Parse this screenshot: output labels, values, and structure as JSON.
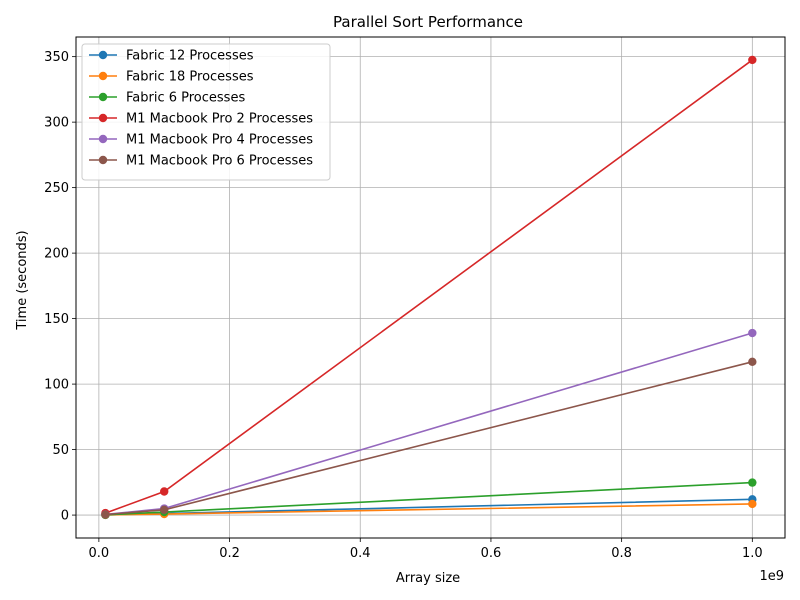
{
  "chart_data": {
    "type": "line",
    "title": "Parallel Sort Performance",
    "xlabel": "Array size",
    "ylabel": "Time (seconds)",
    "x_offset_label": "1e9",
    "x_scale": 1000000000,
    "xlim": [
      -0.035,
      1.05
    ],
    "ylim": [
      -17.5,
      365
    ],
    "xticks": [
      0.0,
      0.2,
      0.4,
      0.6,
      0.8,
      1.0
    ],
    "xtick_labels": [
      "0.0",
      "0.2",
      "0.4",
      "0.6",
      "0.8",
      "1.0"
    ],
    "yticks": [
      0,
      50,
      100,
      150,
      200,
      250,
      300,
      350
    ],
    "ytick_labels": [
      "0",
      "50",
      "100",
      "150",
      "200",
      "250",
      "300",
      "350"
    ],
    "grid": true,
    "legend_position": "top-left",
    "x": [
      0.01,
      0.1,
      1.0
    ],
    "series": [
      {
        "name": "Fabric 12 Processes",
        "color": "#1f77b4",
        "values": [
          0.1,
          1.2,
          12.0
        ]
      },
      {
        "name": "Fabric 18 Processes",
        "color": "#ff7f0e",
        "values": [
          0.1,
          0.8,
          8.5
        ]
      },
      {
        "name": "Fabric 6 Processes",
        "color": "#2ca02c",
        "values": [
          0.2,
          2.3,
          24.8
        ]
      },
      {
        "name": "M1 Macbook Pro 2 Processes",
        "color": "#d62728",
        "values": [
          1.5,
          18.0,
          347.5
        ]
      },
      {
        "name": "M1 Macbook Pro 4 Processes",
        "color": "#9467bd",
        "values": [
          0.5,
          5.0,
          139.0
        ]
      },
      {
        "name": "M1 Macbook Pro 6 Processes",
        "color": "#8c564b",
        "values": [
          0.4,
          4.0,
          117.0
        ]
      }
    ]
  }
}
